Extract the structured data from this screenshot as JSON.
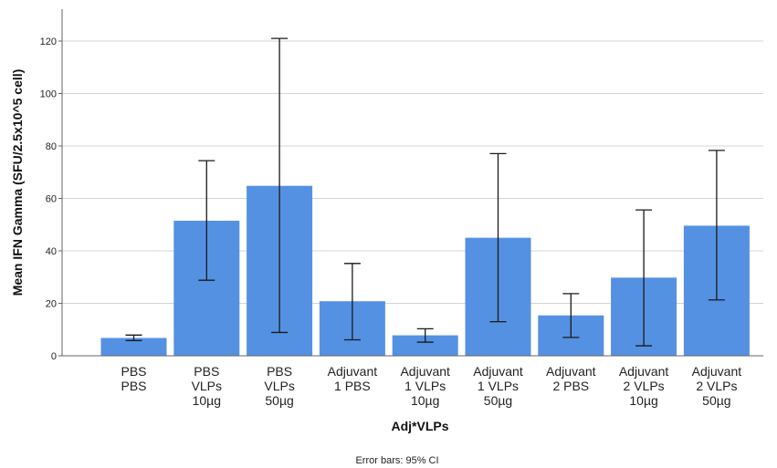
{
  "chart_data": {
    "type": "bar",
    "categories": [
      [
        "PBS",
        "PBS"
      ],
      [
        "PBS",
        "VLPs",
        "10µg"
      ],
      [
        "PBS",
        "VLPs",
        "50µg"
      ],
      [
        "Adjuvant",
        "1 PBS"
      ],
      [
        "Adjuvant",
        "1  VLPs",
        "10µg"
      ],
      [
        "Adjuvant",
        "1 VLPs",
        "50µg"
      ],
      [
        "Adjuvant",
        "2  PBS"
      ],
      [
        "Adjuvant",
        "2  VLPs",
        "10µg"
      ],
      [
        "Adjuvant",
        "2  VLPs",
        "50µg"
      ]
    ],
    "values": [
      6.8,
      51.5,
      64.8,
      20.8,
      7.8,
      45.0,
      15.4,
      29.8,
      49.6
    ],
    "error_low": [
      5.8,
      28.8,
      8.9,
      6.1,
      5.2,
      13.0,
      7.0,
      3.8,
      21.3
    ],
    "error_high": [
      7.9,
      74.4,
      121.0,
      35.2,
      10.3,
      77.1,
      23.7,
      55.6,
      78.3
    ],
    "xlabel": "Adj*VLPs",
    "ylabel": "Mean IFN Gamma (SFU/2.5x10^5 cell)",
    "ylim": [
      0,
      120
    ],
    "yticks": [
      0,
      20,
      40,
      60,
      80,
      100,
      120
    ],
    "grid": true,
    "footnote": "Error bars: 95% CI",
    "bar_color": "#5591e2",
    "errorbar_color": "#1a1a1a"
  }
}
